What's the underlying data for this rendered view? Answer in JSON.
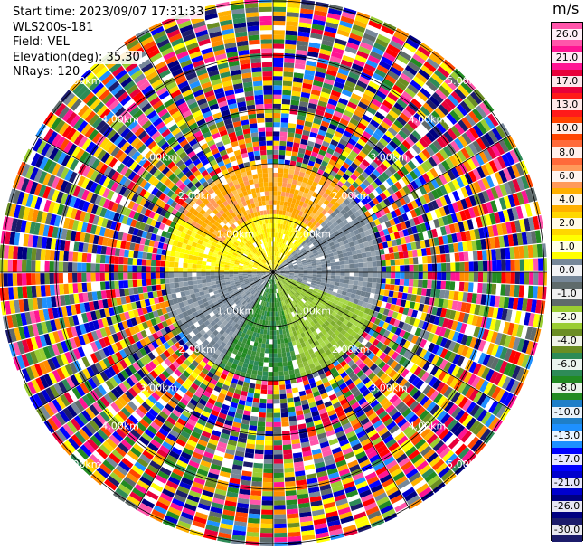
{
  "info": {
    "start_time": "Start time: 2023/09/07 17:31:33",
    "instrument": "WLS200s-181",
    "field": "Field: VEL",
    "elevation": "Elevation(deg): 35.30",
    "nrays": "NRays: 120"
  },
  "colorbar": {
    "unit": "m/s",
    "ticks": [
      "26.0",
      "21.0",
      "17.0",
      "13.0",
      "10.0",
      "8.0",
      "6.0",
      "4.0",
      "2.0",
      "1.0",
      "0.0",
      "-1.0",
      "-2.0",
      "-4.0",
      "-6.0",
      "-8.0",
      "-10.0",
      "-13.0",
      "-17.0",
      "-21.0",
      "-26.0",
      "-30.0"
    ],
    "colors": [
      "#ff55aa",
      "#ff1493",
      "#e8003a",
      "#ff1a1a",
      "#ff4500",
      "#ff6a3a",
      "#ff9a5a",
      "#ffb000",
      "#ffd700",
      "#ffff00",
      "#778899",
      "#5f6b6b",
      "#9acd32",
      "#6b8e23",
      "#2e8b57",
      "#228b22",
      "#1f7fc8",
      "#1e90ff",
      "#0000ff",
      "#0000cd",
      "#000080",
      "#1c1c6b"
    ]
  },
  "chart_data": {
    "type": "heatmap",
    "projection": "polar PPI",
    "field": "VEL",
    "units": "m/s",
    "nrays": 120,
    "range_rings_km": [
      1,
      2,
      3,
      4,
      5
    ],
    "ring_labels": [
      "1.00km",
      "2.00km",
      "3.00km",
      "4.00km",
      "5.00km"
    ],
    "color_range": [
      -30.0,
      26.0
    ],
    "valid_data_max_range_km": 2.0,
    "sectors": [
      {
        "azimuth_deg": [
          270,
          45
        ],
        "velocity_ms": 2.0,
        "color": "yellow"
      },
      {
        "azimuth_deg": [
          300,
          45
        ],
        "velocity_ms": 6.0,
        "color": "orange",
        "range_km": [
          1.0,
          2.0
        ]
      },
      {
        "azimuth_deg": [
          60,
          110
        ],
        "velocity_ms": 0.0,
        "color": "gray"
      },
      {
        "azimuth_deg": [
          110,
          165
        ],
        "velocity_ms": -2.0,
        "color": "yellowgreen"
      },
      {
        "azimuth_deg": [
          165,
          210
        ],
        "velocity_ms": -6.0,
        "color": "green"
      },
      {
        "azimuth_deg": [
          210,
          270
        ],
        "velocity_ms": 0.0,
        "color": "gray"
      }
    ],
    "outer_noise": true
  }
}
